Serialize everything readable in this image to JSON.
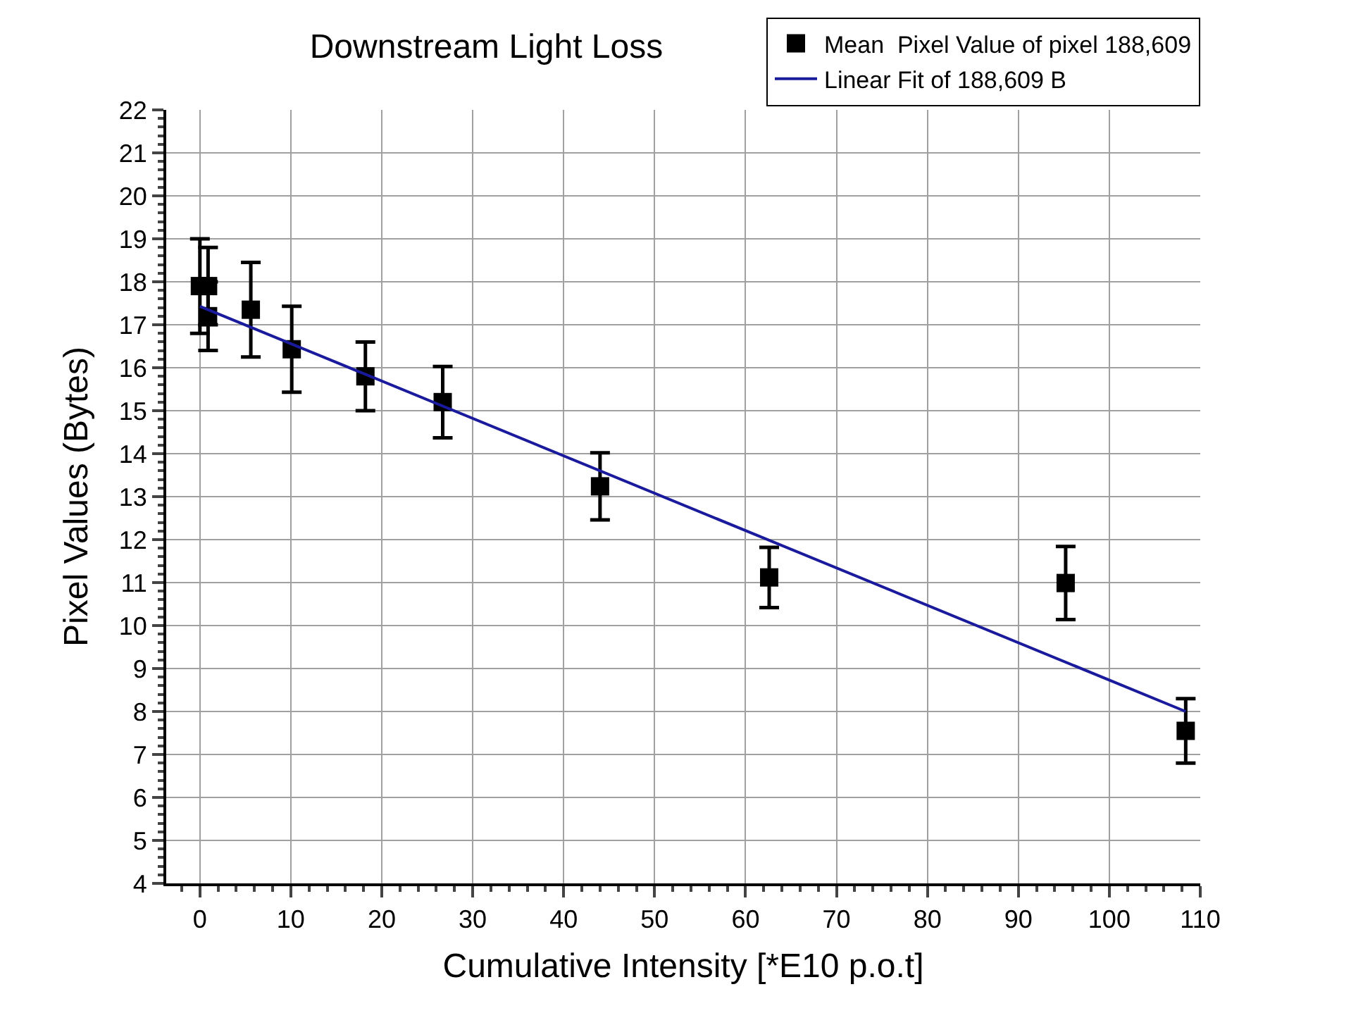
{
  "chart_data": {
    "type": "scatter",
    "title": "Downstream Light Loss",
    "xlabel": "Cumulative Intensity [*E10 p.o.t]",
    "ylabel": "Pixel Values (Bytes)",
    "xlim": [
      -3.7,
      110
    ],
    "xticks": [
      0,
      10,
      20,
      30,
      40,
      50,
      60,
      70,
      80,
      90,
      100,
      110
    ],
    "ylim": [
      4,
      22
    ],
    "yticks": [
      4,
      5,
      6,
      7,
      8,
      9,
      10,
      11,
      12,
      13,
      14,
      15,
      16,
      17,
      18,
      19,
      20,
      21,
      22
    ],
    "grid": true,
    "legend": "top right",
    "series": [
      {
        "name": "Mean  Pixel Value of pixel 188,609",
        "color": "#000000",
        "marker": "square",
        "x": [
          0,
          0.9,
          0.9,
          5.6,
          10.1,
          18.2,
          26.7,
          44.0,
          62.6,
          95.2,
          108.4
        ],
        "values": [
          17.9,
          17.9,
          17.2,
          17.35,
          16.43,
          15.8,
          15.2,
          13.24,
          11.12,
          10.99,
          7.55
        ],
        "errors": [
          1.1,
          0.9,
          0.8,
          1.1,
          1.0,
          0.8,
          0.83,
          0.78,
          0.7,
          0.85,
          0.75
        ]
      },
      {
        "name": "Linear Fit of 188,609 B",
        "type": "line",
        "color": "#1a1a9c",
        "line_style": "solid",
        "marker": "none",
        "x": [
          0,
          108.4
        ],
        "values": [
          17.43,
          8.0
        ]
      }
    ]
  }
}
